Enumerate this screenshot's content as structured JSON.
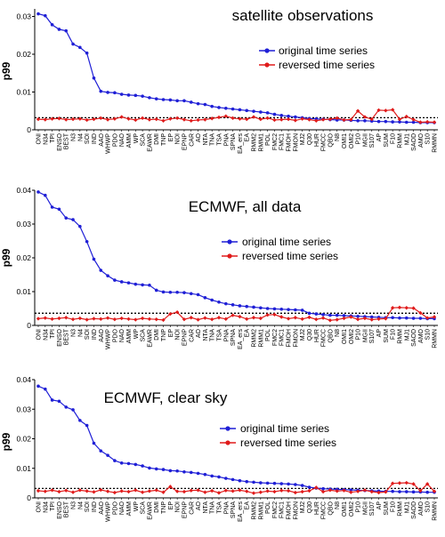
{
  "colors": {
    "original": "#1f1fd6",
    "reversed": "#e01b1b",
    "axis": "#000000",
    "threshold": "#000000"
  },
  "chart_data": [
    {
      "type": "line",
      "title": "satellite observations",
      "ylabel": "p99",
      "xlabel": "",
      "ylim": [
        0,
        0.032
      ],
      "yticks": [
        0,
        0.01,
        0.02,
        0.03
      ],
      "ytick_labels": [
        "0",
        "0.01",
        "0.02",
        "0.03"
      ],
      "grid": false,
      "legend_position": "upper-right",
      "categories": [
        "ONI",
        "N34",
        "TPI",
        "ENSO",
        "BEST",
        "N3",
        "N4",
        "SOI",
        "IND",
        "AAO",
        "WHWP",
        "PDO",
        "NAO",
        "AMM",
        "WP",
        "SCA",
        "EAWR",
        "DMI",
        "TNP",
        "EP",
        "NOI",
        "EPNP",
        "CAR",
        "AO",
        "NTA",
        "TNA",
        "TSA",
        "PNA",
        "SPNA",
        "EA_ers",
        "EA",
        "RMM2",
        "RMM1",
        "POL",
        "FMC2",
        "FMC1",
        "FMOH",
        "FMON",
        "MJ2",
        "Q30",
        "HUR",
        "FMCC",
        "QBO",
        "N8",
        "OMI1",
        "OMI2",
        "P10",
        "MGII",
        "S107",
        "AP",
        "SUM",
        "F10",
        "RMM",
        "MJ1",
        "SAOD",
        "AMO",
        "S10",
        "RMMN"
      ],
      "series": [
        {
          "name": "original time series",
          "values": [
            0.0307,
            0.0302,
            0.0278,
            0.0266,
            0.0262,
            0.0227,
            0.0218,
            0.0203,
            0.0137,
            0.0102,
            0.0099,
            0.0098,
            0.0094,
            0.0092,
            0.0091,
            0.0089,
            0.0085,
            0.0082,
            0.008,
            0.0079,
            0.0077,
            0.0077,
            0.0073,
            0.0069,
            0.0067,
            0.0062,
            0.0059,
            0.0057,
            0.0055,
            0.0053,
            0.0051,
            0.0049,
            0.0047,
            0.0045,
            0.0041,
            0.0038,
            0.0036,
            0.0034,
            0.0032,
            0.003,
            0.0029,
            0.0028,
            0.0027,
            0.0026,
            0.0026,
            0.0025,
            0.0024,
            0.0024,
            0.0023,
            0.0022,
            0.0022,
            0.0021,
            0.0021,
            0.002,
            0.002,
            0.0019,
            0.0019,
            0.0019
          ]
        },
        {
          "name": "reversed time series",
          "values": [
            0.0028,
            0.0027,
            0.0029,
            0.003,
            0.0027,
            0.0028,
            0.0029,
            0.0026,
            0.0028,
            0.0031,
            0.0027,
            0.0029,
            0.0034,
            0.0029,
            0.0026,
            0.0031,
            0.0027,
            0.0028,
            0.0024,
            0.0029,
            0.0031,
            0.0027,
            0.0024,
            0.0026,
            0.0027,
            0.003,
            0.0033,
            0.0036,
            0.0031,
            0.0029,
            0.0028,
            0.0034,
            0.0028,
            0.0031,
            0.0026,
            0.0027,
            0.0028,
            0.0025,
            0.0029,
            0.0027,
            0.0024,
            0.0027,
            0.0028,
            0.0031,
            0.0026,
            0.0027,
            0.005,
            0.0034,
            0.0028,
            0.0052,
            0.0051,
            0.0053,
            0.0028,
            0.0035,
            0.0027,
            0.002,
            0.0021,
            0.002
          ]
        }
      ],
      "threshold": 0.0032
    },
    {
      "type": "line",
      "title": "ECMWF, all data",
      "ylabel": "p99",
      "xlabel": "",
      "ylim": [
        0,
        0.04
      ],
      "yticks": [
        0,
        0.01,
        0.02,
        0.03,
        0.04
      ],
      "ytick_labels": [
        "0",
        "0.01",
        "0.02",
        "0.03",
        "0.04"
      ],
      "grid": false,
      "legend_position": "center-right",
      "categories": [
        "ONI",
        "N34",
        "TPI",
        "ENSO",
        "BEST",
        "N3",
        "N4",
        "SOI",
        "IND",
        "AAO",
        "WHWP",
        "PDO",
        "NAO",
        "AMM",
        "WP",
        "SCA",
        "EAWR",
        "DMI",
        "TNP",
        "EP",
        "NOI",
        "EPNP",
        "CAR",
        "AO",
        "NTA",
        "TNA",
        "TSA",
        "PNA",
        "SPNA",
        "EA_ers",
        "EA",
        "RMM2",
        "RMM1",
        "POL",
        "FMC2",
        "FMC1",
        "FMOH",
        "FMON",
        "MJ2",
        "Q30",
        "HUR",
        "FMCC",
        "QBO",
        "N8",
        "OMI1",
        "OMI2",
        "P10",
        "MGII",
        "S107",
        "AP",
        "SUM",
        "F10",
        "RMM",
        "MJ1",
        "SAOD",
        "AMO",
        "S10",
        "RMMN"
      ],
      "series": [
        {
          "name": "original time series",
          "values": [
            0.0395,
            0.0385,
            0.035,
            0.0344,
            0.0318,
            0.0313,
            0.0293,
            0.0248,
            0.0196,
            0.0163,
            0.0147,
            0.0134,
            0.0129,
            0.0126,
            0.0122,
            0.012,
            0.0119,
            0.0104,
            0.0099,
            0.0098,
            0.0098,
            0.0097,
            0.0094,
            0.0091,
            0.0082,
            0.0075,
            0.0069,
            0.0064,
            0.0061,
            0.0058,
            0.0056,
            0.0054,
            0.0052,
            0.005,
            0.0049,
            0.0048,
            0.0047,
            0.0046,
            0.0045,
            0.0036,
            0.0034,
            0.0032,
            0.003,
            0.003,
            0.0029,
            0.0028,
            0.0027,
            0.0026,
            0.0025,
            0.0024,
            0.0023,
            0.0023,
            0.0022,
            0.0022,
            0.0021,
            0.0021,
            0.002,
            0.002
          ]
        },
        {
          "name": "reversed time series",
          "values": [
            0.002,
            0.0022,
            0.0019,
            0.0021,
            0.0023,
            0.0018,
            0.0021,
            0.0017,
            0.002,
            0.0019,
            0.0022,
            0.0018,
            0.0021,
            0.0019,
            0.0017,
            0.0021,
            0.0019,
            0.0018,
            0.0016,
            0.0034,
            0.0039,
            0.0018,
            0.0023,
            0.0017,
            0.0022,
            0.0018,
            0.0023,
            0.0019,
            0.003,
            0.0026,
            0.0019,
            0.0023,
            0.0021,
            0.0031,
            0.0032,
            0.0025,
            0.002,
            0.0023,
            0.0019,
            0.0024,
            0.0018,
            0.0022,
            0.0015,
            0.0017,
            0.0021,
            0.0025,
            0.0018,
            0.0021,
            0.0017,
            0.0019,
            0.002,
            0.0052,
            0.0053,
            0.0052,
            0.0051,
            0.0037,
            0.0022,
            0.0025
          ]
        }
      ],
      "threshold": 0.0036
    },
    {
      "type": "line",
      "title": "ECMWF, clear sky",
      "ylabel": "p99",
      "xlabel": "",
      "ylim": [
        0,
        0.04
      ],
      "yticks": [
        0,
        0.01,
        0.02,
        0.03,
        0.04
      ],
      "ytick_labels": [
        "0",
        "0.01",
        "0.02",
        "0.03",
        "0.04"
      ],
      "grid": false,
      "legend_position": "center-right",
      "categories": [
        "ONI",
        "N34",
        "TPI",
        "ENSO",
        "BEST",
        "N3",
        "N4",
        "SOI",
        "IND",
        "AAO",
        "WHWP",
        "PDO",
        "NAO",
        "AMM",
        "WP",
        "SCA",
        "EAWR",
        "DMI",
        "TNP",
        "EP",
        "NOI",
        "EPNP",
        "CAR",
        "AO",
        "NTA",
        "TNA",
        "TSA",
        "PNA",
        "SPNA",
        "EA_ers",
        "EA",
        "RMM2",
        "RMM1",
        "POL",
        "FMC2",
        "FMC1",
        "FMOH",
        "FMON",
        "MJ2",
        "Q30",
        "HUR",
        "FMCC",
        "QBO",
        "N8",
        "OMI1",
        "OMI2",
        "P10",
        "MGII",
        "S107",
        "AP",
        "SUM",
        "F10",
        "RMM",
        "MJ1",
        "SAOD",
        "AMO",
        "S10",
        "RMMN"
      ],
      "series": [
        {
          "name": "original time series",
          "values": [
            0.0378,
            0.0368,
            0.0331,
            0.0327,
            0.0307,
            0.0298,
            0.0262,
            0.0245,
            0.0185,
            0.0159,
            0.0144,
            0.0126,
            0.0118,
            0.0116,
            0.0113,
            0.0108,
            0.0101,
            0.0098,
            0.0096,
            0.0092,
            0.0091,
            0.0088,
            0.0086,
            0.0083,
            0.0079,
            0.0074,
            0.0071,
            0.0066,
            0.0062,
            0.0058,
            0.0055,
            0.0053,
            0.0051,
            0.005,
            0.0049,
            0.0048,
            0.0047,
            0.0045,
            0.0042,
            0.0036,
            0.0033,
            0.0031,
            0.003,
            0.0029,
            0.0028,
            0.0027,
            0.0026,
            0.0025,
            0.0024,
            0.0023,
            0.0022,
            0.0022,
            0.0021,
            0.0021,
            0.002,
            0.002,
            0.0019,
            0.0019
          ]
        },
        {
          "name": "reversed time series",
          "values": [
            0.0024,
            0.0022,
            0.0026,
            0.0021,
            0.0025,
            0.0019,
            0.0026,
            0.0023,
            0.002,
            0.0027,
            0.0022,
            0.0018,
            0.0023,
            0.0021,
            0.0026,
            0.0019,
            0.0023,
            0.0026,
            0.0019,
            0.0038,
            0.0022,
            0.0021,
            0.0025,
            0.0026,
            0.0019,
            0.0024,
            0.0017,
            0.0025,
            0.0023,
            0.0026,
            0.0022,
            0.0016,
            0.0019,
            0.0023,
            0.0021,
            0.0025,
            0.0024,
            0.0018,
            0.0021,
            0.0024,
            0.0035,
            0.0021,
            0.0026,
            0.0023,
            0.0025,
            0.0019,
            0.0022,
            0.0026,
            0.0021,
            0.0018,
            0.002,
            0.0049,
            0.005,
            0.0051,
            0.0047,
            0.0024,
            0.0047,
            0.0022
          ]
        }
      ],
      "threshold": 0.0032
    }
  ]
}
